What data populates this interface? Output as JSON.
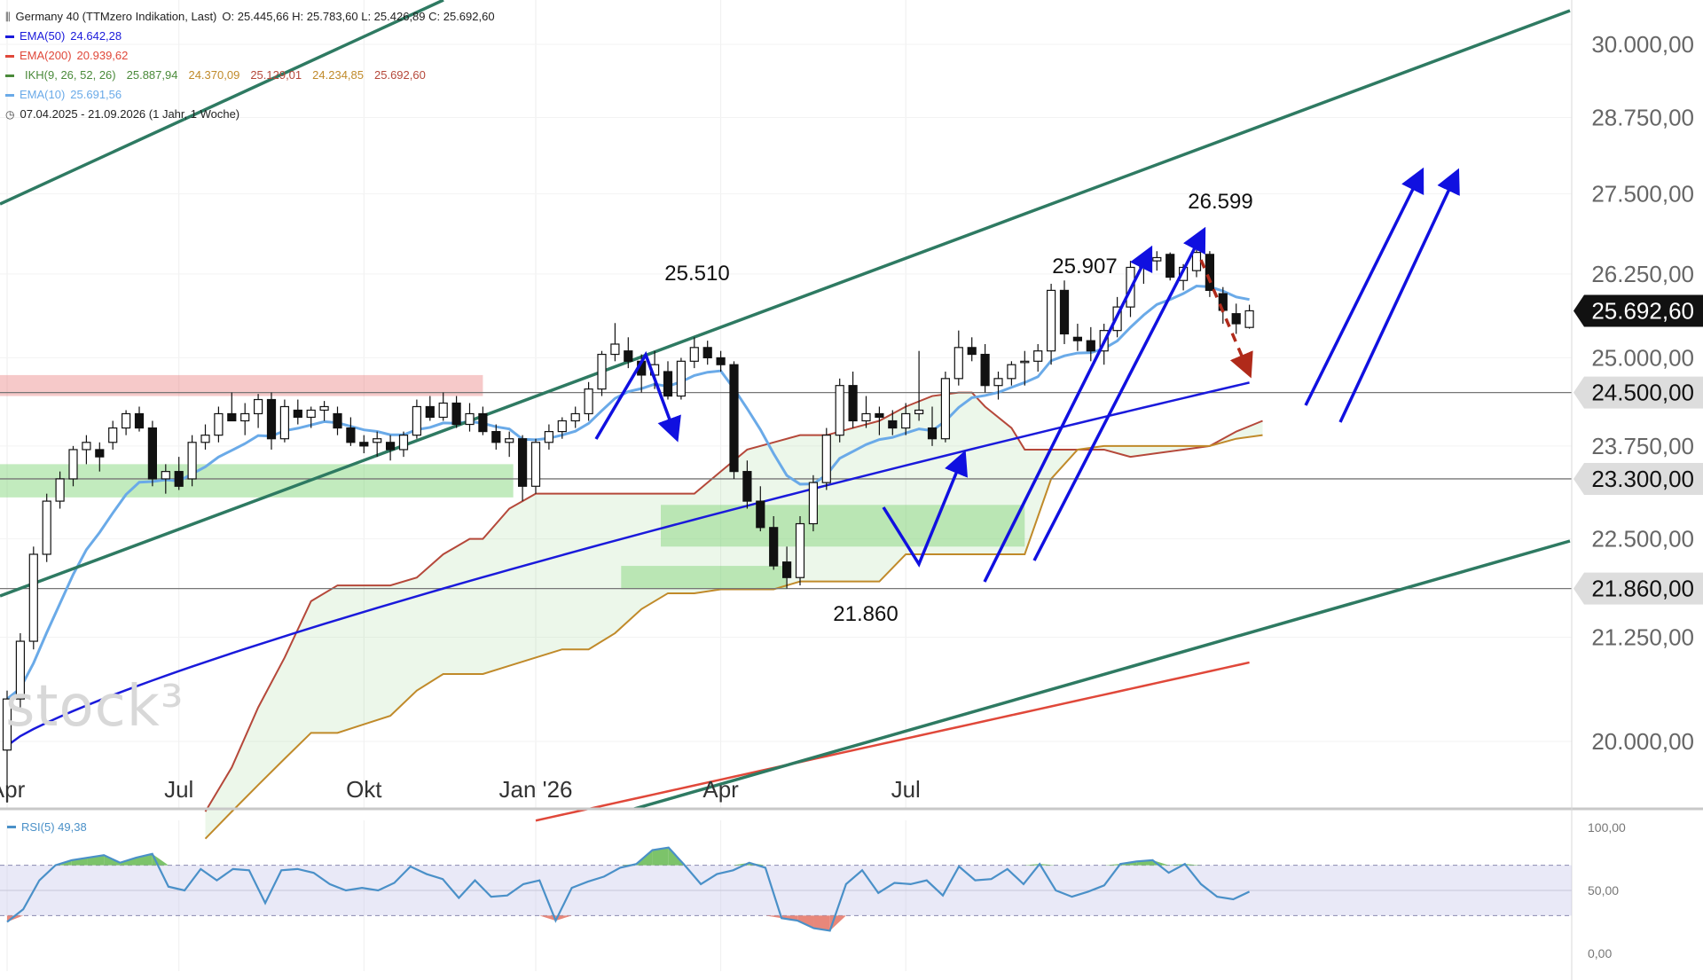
{
  "header": {
    "instrument": "Germany 40 (TTMzero Indikation, Last)",
    "ohlc": "O: 25.445,66   H: 25.783,60   L: 25.426,89   C: 25.692,60",
    "indicators": [
      {
        "label": "EMA(50)",
        "values": [
          "24.642,28"
        ],
        "color": "#1a1adb"
      },
      {
        "label": "EMA(200)",
        "values": [
          "20.939,62"
        ],
        "color": "#e0483a"
      },
      {
        "label": "IKH(9, 26, 52, 26)",
        "values": [
          "25.887,94",
          "24.370,09",
          "25.129,01",
          "24.234,85",
          "25.692,60"
        ],
        "color": "#4a8a3a",
        "value_colors": [
          "#4a8a3a",
          "#c08a2a",
          "#b5483a",
          "#c08a2a",
          "#b5483a"
        ]
      },
      {
        "label": "EMA(10)",
        "values": [
          "25.691,56"
        ],
        "color": "#6aaae8"
      }
    ],
    "range": "07.04.2025 - 21.09.2026   (1 Jahr, 1 Woche)"
  },
  "watermark": "stock³",
  "rsi_label": "RSI(5)  49,38",
  "chart_data": [
    {
      "type": "candlestick",
      "title": "Germany 40 (TTMzero Indikation, Last)",
      "x_tick_labels": [
        "Apr",
        "Jul",
        "Okt",
        "Jan '26",
        "Apr",
        "Jul"
      ],
      "y_scale": "log",
      "y_ticks": [
        20000,
        21250,
        22500,
        23750,
        25000,
        26250,
        27500,
        28750,
        30000
      ],
      "y_tick_labels": [
        "20.000,00",
        "21.250,00",
        "22.500,00",
        "23.750,00",
        "25.000,00",
        "26.250,00",
        "27.500,00",
        "28.750,00",
        "30.000,00"
      ],
      "ylim": [
        19500,
        30800
      ],
      "last_price_label": "25.692,60",
      "level_labels": [
        {
          "value": 24500,
          "label": "24.500,00"
        },
        {
          "value": 23300,
          "label": "23.300,00"
        },
        {
          "value": 21860,
          "label": "21.860,00"
        }
      ],
      "annotations": [
        {
          "text": "25.510",
          "value": 25510
        },
        {
          "text": "25.907",
          "value": 25907
        },
        {
          "text": "26.599",
          "value": 26599
        },
        {
          "text": "21.860",
          "value": 21860
        }
      ],
      "candles": [
        {
          "o": 19900,
          "h": 20600,
          "l": 19300,
          "c": 20500
        },
        {
          "o": 20500,
          "h": 21300,
          "l": 20400,
          "c": 21200
        },
        {
          "o": 21200,
          "h": 22400,
          "l": 21100,
          "c": 22300
        },
        {
          "o": 22300,
          "h": 23100,
          "l": 22200,
          "c": 23000
        },
        {
          "o": 23000,
          "h": 23400,
          "l": 22900,
          "c": 23300
        },
        {
          "o": 23300,
          "h": 23750,
          "l": 23200,
          "c": 23700
        },
        {
          "o": 23700,
          "h": 23900,
          "l": 23500,
          "c": 23800
        },
        {
          "o": 23700,
          "h": 23800,
          "l": 23400,
          "c": 23600
        },
        {
          "o": 23800,
          "h": 24100,
          "l": 23700,
          "c": 24000
        },
        {
          "o": 24000,
          "h": 24250,
          "l": 23900,
          "c": 24200
        },
        {
          "o": 24200,
          "h": 24300,
          "l": 23950,
          "c": 24000
        },
        {
          "o": 24000,
          "h": 24100,
          "l": 23200,
          "c": 23300
        },
        {
          "o": 23300,
          "h": 23500,
          "l": 23100,
          "c": 23400
        },
        {
          "o": 23400,
          "h": 23600,
          "l": 23150,
          "c": 23200
        },
        {
          "o": 23300,
          "h": 23900,
          "l": 23200,
          "c": 23800
        },
        {
          "o": 23800,
          "h": 24050,
          "l": 23700,
          "c": 23900
        },
        {
          "o": 23900,
          "h": 24300,
          "l": 23800,
          "c": 24200
        },
        {
          "o": 24200,
          "h": 24500,
          "l": 24100,
          "c": 24100
        },
        {
          "o": 24100,
          "h": 24350,
          "l": 23900,
          "c": 24200
        },
        {
          "o": 24200,
          "h": 24480,
          "l": 24000,
          "c": 24400
        },
        {
          "o": 24400,
          "h": 24500,
          "l": 23700,
          "c": 23850
        },
        {
          "o": 23850,
          "h": 24400,
          "l": 23800,
          "c": 24300
        },
        {
          "o": 24250,
          "h": 24400,
          "l": 24050,
          "c": 24150
        },
        {
          "o": 24150,
          "h": 24300,
          "l": 24000,
          "c": 24250
        },
        {
          "o": 24250,
          "h": 24380,
          "l": 24100,
          "c": 24300
        },
        {
          "o": 24200,
          "h": 24300,
          "l": 23900,
          "c": 24000
        },
        {
          "o": 24000,
          "h": 24150,
          "l": 23750,
          "c": 23800
        },
        {
          "o": 23800,
          "h": 23900,
          "l": 23650,
          "c": 23750
        },
        {
          "o": 23800,
          "h": 23950,
          "l": 23600,
          "c": 23850
        },
        {
          "o": 23800,
          "h": 23900,
          "l": 23550,
          "c": 23700
        },
        {
          "o": 23700,
          "h": 23950,
          "l": 23600,
          "c": 23900
        },
        {
          "o": 23900,
          "h": 24400,
          "l": 23850,
          "c": 24300
        },
        {
          "o": 24300,
          "h": 24450,
          "l": 24100,
          "c": 24150
        },
        {
          "o": 24150,
          "h": 24500,
          "l": 24100,
          "c": 24350
        },
        {
          "o": 24350,
          "h": 24450,
          "l": 24000,
          "c": 24050
        },
        {
          "o": 24050,
          "h": 24350,
          "l": 23950,
          "c": 24200
        },
        {
          "o": 24200,
          "h": 24300,
          "l": 23900,
          "c": 23950
        },
        {
          "o": 23950,
          "h": 24050,
          "l": 23700,
          "c": 23800
        },
        {
          "o": 23800,
          "h": 23950,
          "l": 23600,
          "c": 23850
        },
        {
          "o": 23850,
          "h": 23900,
          "l": 23000,
          "c": 23200
        },
        {
          "o": 23200,
          "h": 23850,
          "l": 23100,
          "c": 23800
        },
        {
          "o": 23800,
          "h": 24050,
          "l": 23700,
          "c": 23950
        },
        {
          "o": 23950,
          "h": 24150,
          "l": 23850,
          "c": 24100
        },
        {
          "o": 24100,
          "h": 24300,
          "l": 24000,
          "c": 24200
        },
        {
          "o": 24200,
          "h": 24650,
          "l": 24100,
          "c": 24550
        },
        {
          "o": 24550,
          "h": 25100,
          "l": 24450,
          "c": 25050
        },
        {
          "o": 25050,
          "h": 25510,
          "l": 24950,
          "c": 25200
        },
        {
          "o": 25100,
          "h": 25300,
          "l": 24850,
          "c": 24950
        },
        {
          "o": 24950,
          "h": 25050,
          "l": 24500,
          "c": 24750
        },
        {
          "o": 24750,
          "h": 25100,
          "l": 24550,
          "c": 24900
        },
        {
          "o": 24800,
          "h": 24950,
          "l": 24400,
          "c": 24450
        },
        {
          "o": 24450,
          "h": 25000,
          "l": 24400,
          "c": 24950
        },
        {
          "o": 24950,
          "h": 25300,
          "l": 24850,
          "c": 25150
        },
        {
          "o": 25150,
          "h": 25250,
          "l": 24900,
          "c": 25000
        },
        {
          "o": 25000,
          "h": 25100,
          "l": 24800,
          "c": 24900
        },
        {
          "o": 24900,
          "h": 24950,
          "l": 23300,
          "c": 23400
        },
        {
          "o": 23400,
          "h": 23550,
          "l": 22900,
          "c": 23000
        },
        {
          "o": 23000,
          "h": 23200,
          "l": 22600,
          "c": 22650
        },
        {
          "o": 22650,
          "h": 22800,
          "l": 22100,
          "c": 22150
        },
        {
          "o": 22200,
          "h": 22400,
          "l": 21860,
          "c": 22000
        },
        {
          "o": 22000,
          "h": 22800,
          "l": 21900,
          "c": 22700
        },
        {
          "o": 22700,
          "h": 23350,
          "l": 22600,
          "c": 23250
        },
        {
          "o": 23250,
          "h": 24000,
          "l": 23150,
          "c": 23900
        },
        {
          "o": 23900,
          "h": 24700,
          "l": 23800,
          "c": 24600
        },
        {
          "o": 24600,
          "h": 24800,
          "l": 24000,
          "c": 24100
        },
        {
          "o": 24100,
          "h": 24450,
          "l": 24000,
          "c": 24200
        },
        {
          "o": 24200,
          "h": 24300,
          "l": 23900,
          "c": 24150
        },
        {
          "o": 24100,
          "h": 24250,
          "l": 23900,
          "c": 24000
        },
        {
          "o": 24000,
          "h": 24350,
          "l": 23900,
          "c": 24200
        },
        {
          "o": 24200,
          "h": 25100,
          "l": 24100,
          "c": 24250
        },
        {
          "o": 24000,
          "h": 24300,
          "l": 23750,
          "c": 23850
        },
        {
          "o": 23850,
          "h": 24800,
          "l": 23800,
          "c": 24700
        },
        {
          "o": 24700,
          "h": 25400,
          "l": 24600,
          "c": 25150
        },
        {
          "o": 25150,
          "h": 25300,
          "l": 24950,
          "c": 25050
        },
        {
          "o": 25050,
          "h": 25200,
          "l": 24500,
          "c": 24600
        },
        {
          "o": 24600,
          "h": 24800,
          "l": 24400,
          "c": 24700
        },
        {
          "o": 24700,
          "h": 24950,
          "l": 24600,
          "c": 24900
        },
        {
          "o": 24950,
          "h": 25100,
          "l": 24600,
          "c": 24950
        },
        {
          "o": 24950,
          "h": 25200,
          "l": 24800,
          "c": 25100
        },
        {
          "o": 25100,
          "h": 26100,
          "l": 24900,
          "c": 26000
        },
        {
          "o": 26000,
          "h": 26150,
          "l": 25200,
          "c": 25350
        },
        {
          "o": 25300,
          "h": 25500,
          "l": 25100,
          "c": 25250
        },
        {
          "o": 25250,
          "h": 25450,
          "l": 24950,
          "c": 25100
        },
        {
          "o": 25100,
          "h": 25500,
          "l": 24900,
          "c": 25400
        },
        {
          "o": 25400,
          "h": 25900,
          "l": 25300,
          "c": 25750
        },
        {
          "o": 25750,
          "h": 26450,
          "l": 25600,
          "c": 26350
        },
        {
          "o": 26350,
          "h": 26500,
          "l": 26100,
          "c": 26450
        },
        {
          "o": 26450,
          "h": 26599,
          "l": 26300,
          "c": 26500
        },
        {
          "o": 26550,
          "h": 26580,
          "l": 26150,
          "c": 26200
        },
        {
          "o": 26150,
          "h": 26400,
          "l": 26000,
          "c": 26350
        },
        {
          "o": 26300,
          "h": 26650,
          "l": 26200,
          "c": 26580
        },
        {
          "o": 26550,
          "h": 26600,
          "l": 25900,
          "c": 26000
        },
        {
          "o": 25950,
          "h": 26050,
          "l": 25500,
          "c": 25700
        },
        {
          "o": 25650,
          "h": 25800,
          "l": 25350,
          "c": 25500
        },
        {
          "o": 25445.66,
          "h": 25783.6,
          "l": 25426.89,
          "c": 25692.6
        }
      ],
      "series": [
        {
          "name": "EMA(50)",
          "color": "#1a1adb"
        },
        {
          "name": "EMA(200)",
          "color": "#e0483a"
        },
        {
          "name": "IKH(9, 26, 52, 26)",
          "color": "#4a8a3a"
        },
        {
          "name": "EMA(10)",
          "color": "#6aaae8"
        }
      ]
    },
    {
      "type": "line",
      "title": "RSI(5)",
      "y_ticks": [
        0,
        50,
        100
      ],
      "y_tick_labels": [
        "0,00",
        "50,00",
        "100,00"
      ],
      "ylim": [
        0,
        100
      ],
      "bands": [
        30,
        70
      ],
      "values": [
        25,
        35,
        58,
        70,
        74,
        76,
        78,
        72,
        76,
        79,
        53,
        50,
        67,
        58,
        67,
        66,
        40,
        66,
        67,
        64,
        55,
        50,
        52,
        50,
        56,
        69,
        63,
        59,
        44,
        58,
        45,
        46,
        55,
        58,
        26,
        52,
        57,
        61,
        68,
        71,
        82,
        84,
        70,
        55,
        63,
        66,
        72,
        68,
        28,
        26,
        20,
        18,
        55,
        66,
        48,
        56,
        55,
        58,
        46,
        69,
        58,
        59,
        67,
        55,
        71,
        50,
        45,
        49,
        54,
        71,
        73,
        74,
        64,
        71,
        55,
        45,
        43,
        49
      ],
      "last_label": "49,38"
    }
  ]
}
